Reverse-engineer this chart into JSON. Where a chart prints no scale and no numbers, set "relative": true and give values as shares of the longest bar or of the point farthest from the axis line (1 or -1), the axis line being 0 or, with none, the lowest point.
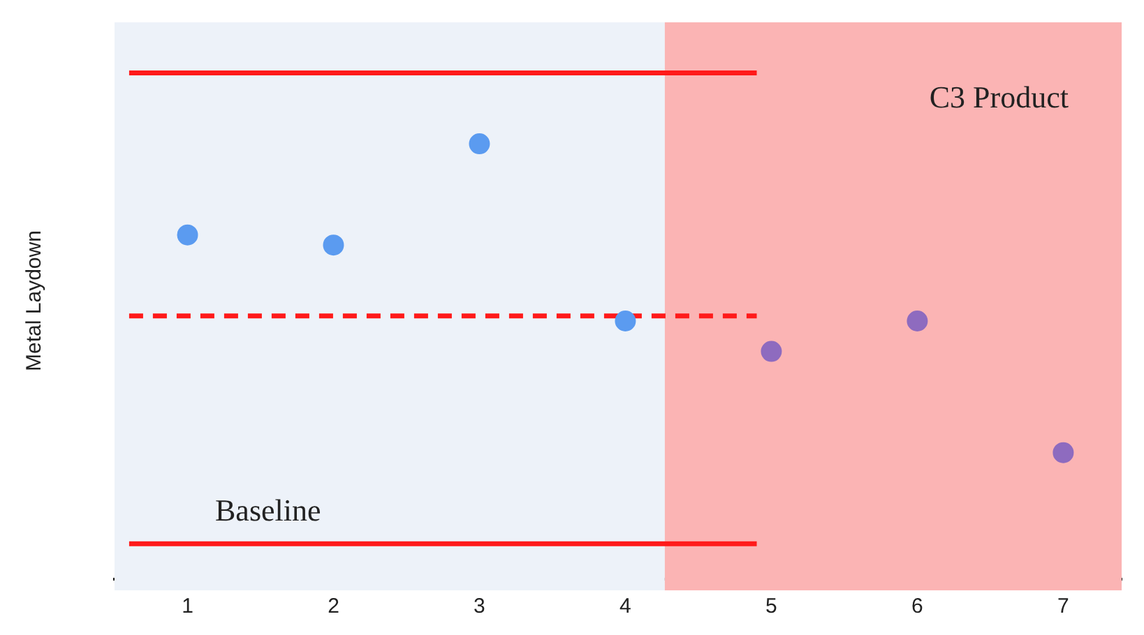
{
  "chart_data": {
    "type": "scatter",
    "ylabel": "Metal Laydown",
    "relative": true,
    "xlim": [
      0.5,
      7.4
    ],
    "xticks": [
      1,
      2,
      3,
      4,
      5,
      6,
      7
    ],
    "grid": false,
    "legend": false,
    "series": [
      {
        "type": "scatter",
        "marker": "circle",
        "x": [
          1,
          2,
          3,
          4,
          5,
          6,
          7
        ],
        "values": [
          0.68,
          0.66,
          0.86,
          0.51,
          0.45,
          0.51,
          0.25
        ],
        "colors": [
          "#5b9bf0",
          "#5b9bf0",
          "#5b9bf0",
          "#5b9bf0",
          "#8e6bbf",
          "#8e6bbf",
          "#8e6bbf"
        ]
      },
      {
        "type": "line",
        "x": [
          0.6,
          4.9
        ],
        "values": [
          1,
          1
        ],
        "color": "#ff1a1a",
        "line_style": "solid",
        "marker": "none"
      },
      {
        "type": "line",
        "x": [
          0.6,
          4.9
        ],
        "values": [
          0.52,
          0.52
        ],
        "color": "#ff1a1a",
        "line_style": "dashed",
        "marker": "none"
      },
      {
        "type": "line",
        "x": [
          0.6,
          4.9
        ],
        "values": [
          0.07,
          0.07
        ],
        "color": "#ff1a1a",
        "line_style": "solid",
        "marker": "none"
      }
    ],
    "bands": [
      {
        "axis": "x",
        "from": 0.5,
        "to": 4.27,
        "label": "Baseline",
        "color": "#edf2f9"
      },
      {
        "axis": "x",
        "from": 4.27,
        "to": 7.4,
        "label": "C3 Product",
        "color": "#fbb4b4"
      }
    ]
  }
}
